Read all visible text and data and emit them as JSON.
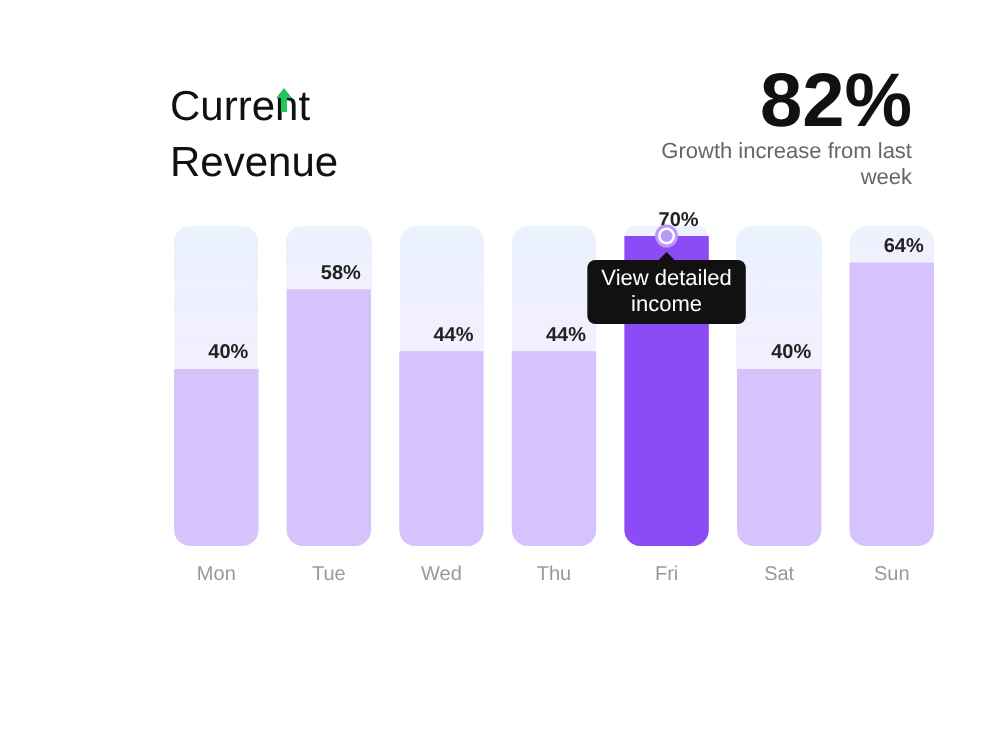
{
  "chart_data": {
    "type": "bar",
    "title": "Current Revenue",
    "categories": [
      "Mon",
      "Tue",
      "Wed",
      "Thu",
      "Fri",
      "Sat",
      "Sun"
    ],
    "values": [
      40,
      58,
      44,
      44,
      70,
      40,
      64
    ],
    "value_labels": [
      "40%",
      "58%",
      "44%",
      "44%",
      "70%",
      "40%",
      "64%"
    ],
    "colors": [
      "#d6c2fc",
      "#d6c2fc",
      "#d6c2fc",
      "#d6c2fc",
      "#8b4cf6",
      "#d6c2fc",
      "#d6c2fc"
    ],
    "annotations": [
      "82%",
      "Growth increase from last week",
      {
        "text": "View detailed income",
        "x": "Fri",
        "y": 70
      }
    ],
    "grid": false,
    "legend": false
  }
}
